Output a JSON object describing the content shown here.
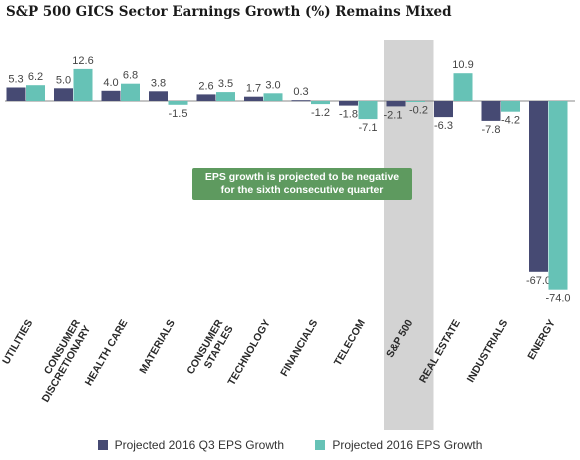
{
  "chart_data": {
    "type": "bar",
    "title": "S&P 500 GICS Sector Earnings Growth (%) Remains Mixed",
    "categories": [
      "UTILITIES",
      "CONSUMER DISCRETIONARY",
      "HEALTH CARE",
      "MATERIALS",
      "CONSUMER STAPLES",
      "TECHNOLOGY",
      "FINANCIALS",
      "TELECOM",
      "S&P 500",
      "REAL ESTATE",
      "INDUSTRIALS",
      "ENERGY"
    ],
    "category_lines": [
      [
        "UTILITIES"
      ],
      [
        "CONSUMER",
        "DISCRETIONARY"
      ],
      [
        "HEALTH CARE"
      ],
      [
        "MATERIALS"
      ],
      [
        "CONSUMER",
        "STAPLES"
      ],
      [
        "TECHNOLOGY"
      ],
      [
        "FINANCIALS"
      ],
      [
        "TELECOM"
      ],
      [
        "S&P 500"
      ],
      [
        "REAL ESTATE"
      ],
      [
        "INDUSTRIALS"
      ],
      [
        "ENERGY"
      ]
    ],
    "series": [
      {
        "name": "Projected 2016 Q3 EPS Growth",
        "color": "#464a73",
        "values": [
          5.3,
          5.0,
          4.0,
          3.8,
          2.6,
          1.7,
          0.3,
          -1.8,
          -2.1,
          -6.3,
          -7.8,
          -67.0
        ]
      },
      {
        "name": "Projected 2016 EPS Growth",
        "color": "#66c2b6",
        "values": [
          6.2,
          12.6,
          6.8,
          -1.5,
          3.5,
          3.0,
          -1.2,
          -7.1,
          -0.2,
          10.9,
          -4.2,
          -74.0
        ]
      }
    ],
    "value_labels": [
      [
        "5.3",
        "5.0",
        "4.0",
        "3.8",
        "2.6",
        "1.7",
        "0.3",
        "-1.8",
        "-2.1",
        "-6.3",
        "-7.8",
        "-67.0"
      ],
      [
        "6.2",
        "12.6",
        "6.8",
        "-1.5",
        "3.5",
        "3.0",
        "-1.2",
        "-7.1",
        "-0.2",
        "10.9",
        "-4.2",
        "-74.0"
      ]
    ],
    "highlight_category": "S&P 500",
    "highlight_color": "#d3d3d3",
    "annotation": "EPS growth is projected to be negative for the sixth consecutive quarter",
    "annotation_lines": [
      "EPS growth is projected to be negative",
      "for the sixth consecutive quarter"
    ],
    "annotation_color": "#5e9a5f",
    "ylim": [
      -76,
      14
    ],
    "grid": false,
    "legend_position": "bottom"
  }
}
